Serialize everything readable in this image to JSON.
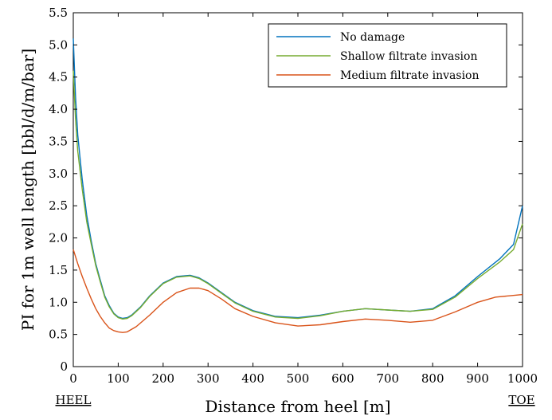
{
  "chart_data": {
    "type": "line",
    "title": "",
    "xlabel": "Distance from heel [m]",
    "ylabel": "PI for 1m well length [bbl/d/m/bar]",
    "xlim": [
      0,
      1000
    ],
    "ylim": [
      0,
      5.5
    ],
    "xticks": [
      0,
      100,
      200,
      300,
      400,
      500,
      600,
      700,
      800,
      900,
      1000
    ],
    "xtick_labels": [
      "0",
      "100",
      "200",
      "300",
      "400",
      "500",
      "600",
      "700",
      "800",
      "900",
      "1000"
    ],
    "yticks": [
      0,
      0.5,
      1.0,
      1.5,
      2.0,
      2.5,
      3.0,
      3.5,
      4.0,
      4.5,
      5.0,
      5.5
    ],
    "ytick_labels": [
      "0",
      "0.5",
      "1.0",
      "1.5",
      "2.0",
      "2.5",
      "3.0",
      "3.5",
      "4.0",
      "4.5",
      "5.0",
      "5.5"
    ],
    "grid": false,
    "legend_position": "top-right",
    "end_labels": {
      "left": "HEEL",
      "right": "TOE"
    },
    "series": [
      {
        "name": "No damage",
        "color": "#0072BD",
        "x": [
          0,
          5,
          10,
          20,
          30,
          40,
          50,
          60,
          70,
          80,
          90,
          100,
          110,
          120,
          130,
          150,
          170,
          200,
          230,
          260,
          280,
          300,
          330,
          360,
          400,
          450,
          500,
          550,
          600,
          650,
          700,
          750,
          800,
          850,
          900,
          950,
          980,
          1000
        ],
        "y": [
          5.1,
          4.2,
          3.6,
          2.9,
          2.35,
          1.95,
          1.6,
          1.35,
          1.1,
          0.95,
          0.83,
          0.77,
          0.75,
          0.76,
          0.8,
          0.93,
          1.1,
          1.3,
          1.4,
          1.42,
          1.38,
          1.3,
          1.15,
          1.0,
          0.87,
          0.78,
          0.76,
          0.8,
          0.86,
          0.9,
          0.88,
          0.86,
          0.9,
          1.1,
          1.4,
          1.68,
          1.9,
          2.5
        ]
      },
      {
        "name": "Shallow filtrate invasion",
        "color": "#77AC30",
        "x": [
          0,
          5,
          10,
          20,
          30,
          40,
          50,
          60,
          70,
          80,
          90,
          100,
          110,
          120,
          130,
          150,
          170,
          200,
          230,
          260,
          280,
          300,
          330,
          360,
          400,
          450,
          500,
          550,
          600,
          650,
          700,
          750,
          800,
          850,
          900,
          950,
          980,
          1000
        ],
        "y": [
          4.6,
          3.85,
          3.35,
          2.75,
          2.25,
          1.9,
          1.57,
          1.32,
          1.08,
          0.93,
          0.82,
          0.76,
          0.74,
          0.75,
          0.79,
          0.92,
          1.09,
          1.29,
          1.39,
          1.41,
          1.37,
          1.29,
          1.14,
          0.99,
          0.86,
          0.77,
          0.75,
          0.79,
          0.86,
          0.9,
          0.88,
          0.86,
          0.89,
          1.08,
          1.37,
          1.63,
          1.82,
          2.22
        ]
      },
      {
        "name": "Medium filtrate invasion",
        "color": "#D95319",
        "x": [
          0,
          10,
          20,
          30,
          40,
          50,
          60,
          70,
          80,
          90,
          100,
          110,
          120,
          140,
          170,
          200,
          230,
          260,
          280,
          300,
          330,
          360,
          400,
          450,
          500,
          550,
          600,
          650,
          700,
          750,
          800,
          850,
          900,
          940,
          970,
          1000
        ],
        "y": [
          1.82,
          1.6,
          1.4,
          1.22,
          1.05,
          0.9,
          0.78,
          0.68,
          0.6,
          0.56,
          0.54,
          0.53,
          0.54,
          0.62,
          0.8,
          1.0,
          1.15,
          1.22,
          1.22,
          1.18,
          1.05,
          0.9,
          0.78,
          0.68,
          0.63,
          0.65,
          0.7,
          0.74,
          0.72,
          0.69,
          0.72,
          0.85,
          1.0,
          1.08,
          1.1,
          1.12
        ]
      }
    ]
  }
}
